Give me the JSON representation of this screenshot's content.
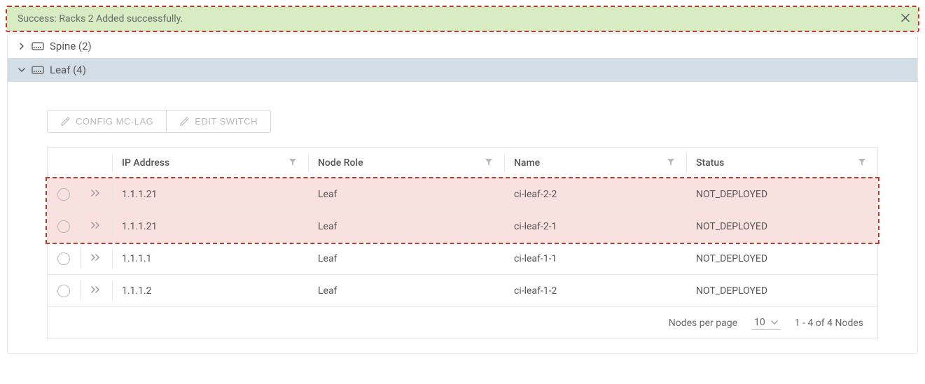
{
  "alert": {
    "text": "Success: Racks 2 Added successfully.",
    "bg_color": "#d7ecc2",
    "border_color": "#c9e3ab",
    "highlight_border": "#c0392b"
  },
  "sections": {
    "spine": {
      "label": "Spine (2)",
      "expanded": false
    },
    "leaf": {
      "label": "Leaf (4)",
      "expanded": true,
      "header_bg": "#d3dde5"
    }
  },
  "toolbar": {
    "config_mclag": "CONFIG MC-LAG",
    "edit_switch": "EDIT SWITCH"
  },
  "table": {
    "columns": {
      "ip": "IP Address",
      "role": "Node Role",
      "name": "Name",
      "status": "Status"
    },
    "rows": [
      {
        "ip": "1.1.1.21",
        "role": "Leaf",
        "name": "ci-leaf-2-2",
        "status": "NOT_DEPLOYED",
        "highlighted": true
      },
      {
        "ip": "1.1.1.21",
        "role": "Leaf",
        "name": "ci-leaf-2-1",
        "status": "NOT_DEPLOYED",
        "highlighted": true
      },
      {
        "ip": "1.1.1.1",
        "role": "Leaf",
        "name": "ci-leaf-1-1",
        "status": "NOT_DEPLOYED",
        "highlighted": false
      },
      {
        "ip": "1.1.1.2",
        "role": "Leaf",
        "name": "ci-leaf-1-2",
        "status": "NOT_DEPLOYED",
        "highlighted": false
      }
    ],
    "highlight_bg": "#f9e1df",
    "highlight_border": "#c0392b"
  },
  "pager": {
    "label": "Nodes per page",
    "page_size": "10",
    "range": "1 - 4 of 4 Nodes"
  },
  "colors": {
    "border": "#e6e6e6",
    "text": "#565656",
    "muted": "#b8b8b8"
  }
}
